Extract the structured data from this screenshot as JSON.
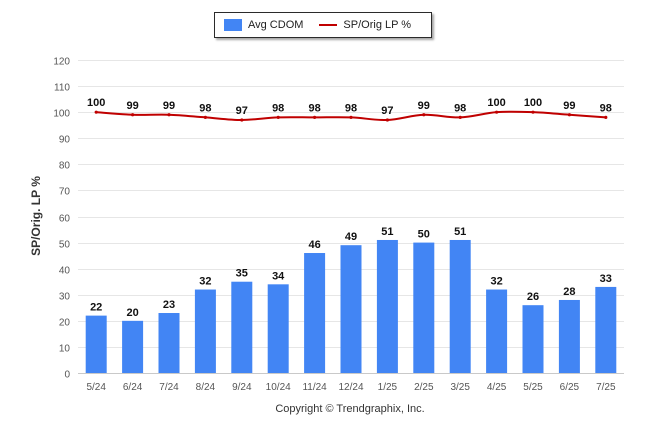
{
  "legend": {
    "bar_label": "Avg CDOM",
    "line_label": "SP/Orig LP %"
  },
  "copyright": "Copyright © Trendgraphix, Inc.",
  "colors": {
    "bar": "#4285f4",
    "line": "#c00000",
    "grid": "#e6e6e6"
  },
  "chart_data": {
    "type": "bar",
    "categories": [
      "5/24",
      "6/24",
      "7/24",
      "8/24",
      "9/24",
      "10/24",
      "11/24",
      "12/24",
      "1/25",
      "2/25",
      "3/25",
      "4/25",
      "5/25",
      "6/25",
      "7/25"
    ],
    "series": [
      {
        "name": "Avg CDOM",
        "type": "bar",
        "values": [
          22,
          20,
          23,
          32,
          35,
          34,
          46,
          49,
          51,
          50,
          51,
          32,
          26,
          28,
          33
        ]
      },
      {
        "name": "SP/Orig LP %",
        "type": "line",
        "values": [
          100,
          99,
          99,
          98,
          97,
          98,
          98,
          98,
          97,
          99,
          98,
          100,
          100,
          99,
          98
        ]
      }
    ],
    "ylabel": "SP/Orig. LP %",
    "ylim": [
      0,
      120
    ],
    "yticks": [
      0,
      10,
      20,
      30,
      40,
      50,
      60,
      70,
      80,
      90,
      100,
      110,
      120
    ],
    "grid": true,
    "legend_position": "top-center"
  }
}
